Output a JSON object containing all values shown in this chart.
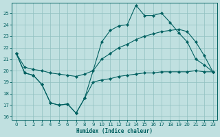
{
  "xlabel": "Humidex (Indice chaleur)",
  "bg_color": "#c0e0e0",
  "line_color": "#006060",
  "xlim": [
    -0.5,
    23.5
  ],
  "ylim": [
    15.7,
    25.9
  ],
  "yticks": [
    16,
    17,
    18,
    19,
    20,
    21,
    22,
    23,
    24,
    25
  ],
  "xticks": [
    0,
    1,
    2,
    3,
    4,
    5,
    6,
    7,
    8,
    9,
    10,
    11,
    12,
    13,
    14,
    15,
    16,
    17,
    18,
    19,
    20,
    21,
    22,
    23
  ],
  "line1_x": [
    0,
    1,
    2,
    3,
    4,
    5,
    6,
    7,
    8,
    9,
    10,
    11,
    12,
    13,
    14,
    15,
    16,
    17,
    18,
    19,
    20,
    21,
    22,
    23
  ],
  "line1_y": [
    21.5,
    19.8,
    19.6,
    18.8,
    17.2,
    17.0,
    17.1,
    16.3,
    17.6,
    19.0,
    19.2,
    19.3,
    19.5,
    19.6,
    19.7,
    19.8,
    19.8,
    19.9,
    19.9,
    19.9,
    19.9,
    20.0,
    19.9,
    19.9
  ],
  "line2_x": [
    0,
    1,
    2,
    3,
    4,
    5,
    6,
    7,
    8,
    9,
    10,
    11,
    12,
    13,
    14,
    15,
    16,
    17,
    18,
    19,
    20,
    21,
    22,
    23
  ],
  "line2_y": [
    21.5,
    19.8,
    19.6,
    18.8,
    17.2,
    17.0,
    17.1,
    16.3,
    17.6,
    20.0,
    22.5,
    23.5,
    23.9,
    24.0,
    25.7,
    24.8,
    24.8,
    25.0,
    24.2,
    23.3,
    22.5,
    21.0,
    20.5,
    19.9
  ],
  "line3_x": [
    0,
    1,
    2,
    3,
    4,
    5,
    6,
    7,
    8,
    9,
    10,
    11,
    12,
    13,
    14,
    15,
    16,
    17,
    18,
    19,
    20,
    21,
    22,
    23
  ],
  "line3_y": [
    21.5,
    20.3,
    20.1,
    20.0,
    19.8,
    19.7,
    19.6,
    19.5,
    19.7,
    20.0,
    21.0,
    21.5,
    22.0,
    22.3,
    22.7,
    23.0,
    23.2,
    23.4,
    23.5,
    23.6,
    23.4,
    22.5,
    21.3,
    19.9
  ],
  "marker": "D",
  "marker_size": 2.2,
  "linewidth": 0.8,
  "xlabel_fontsize": 5.5,
  "tick_fontsize": 5.0
}
